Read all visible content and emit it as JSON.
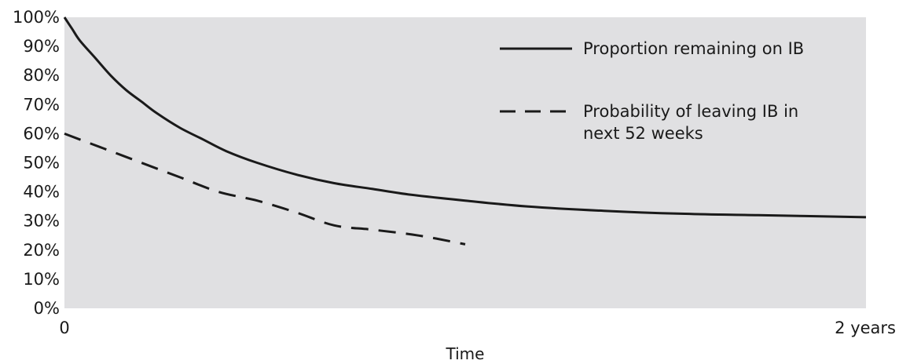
{
  "chart_data": {
    "type": "line",
    "title": "",
    "xlabel": "Time",
    "ylabel": "",
    "x_unit": "weeks",
    "xlim": [
      0,
      104
    ],
    "ylim": [
      0,
      100
    ],
    "grid": false,
    "legend_position": "top-right",
    "x_tick_labels": [
      {
        "value": 0,
        "label": "0"
      },
      {
        "value": 104,
        "label": "2 years"
      }
    ],
    "y_tick_labels": [
      "0%",
      "10%",
      "20%",
      "30%",
      "40%",
      "50%",
      "60%",
      "70%",
      "80%",
      "90%",
      "100%"
    ],
    "y_tick_values": [
      0,
      10,
      20,
      30,
      40,
      50,
      60,
      70,
      80,
      90,
      100
    ],
    "background_color": "#e0e0e2",
    "line_color": "#1a1a1a",
    "series": [
      {
        "name": "Proportion remaining on IB",
        "style": "solid",
        "x": [
          0,
          1,
          2,
          4,
          6,
          8,
          10,
          12,
          15,
          18,
          21,
          25,
          30,
          35,
          40,
          45,
          52,
          60,
          70,
          80,
          90,
          104
        ],
        "y": [
          100,
          96,
          92,
          86,
          80,
          75,
          71,
          67,
          62,
          58,
          54,
          50,
          46,
          43,
          41,
          39,
          37,
          35,
          33.5,
          32.5,
          32,
          31.3
        ]
      },
      {
        "name": "Probability of leaving IB in next 52 weeks",
        "style": "dashed",
        "x": [
          0,
          5,
          10,
          15,
          20,
          25,
          30,
          35,
          40,
          46,
          52
        ],
        "y": [
          60,
          55,
          50,
          45,
          40,
          37,
          33,
          28.5,
          27,
          25,
          22
        ]
      }
    ]
  }
}
